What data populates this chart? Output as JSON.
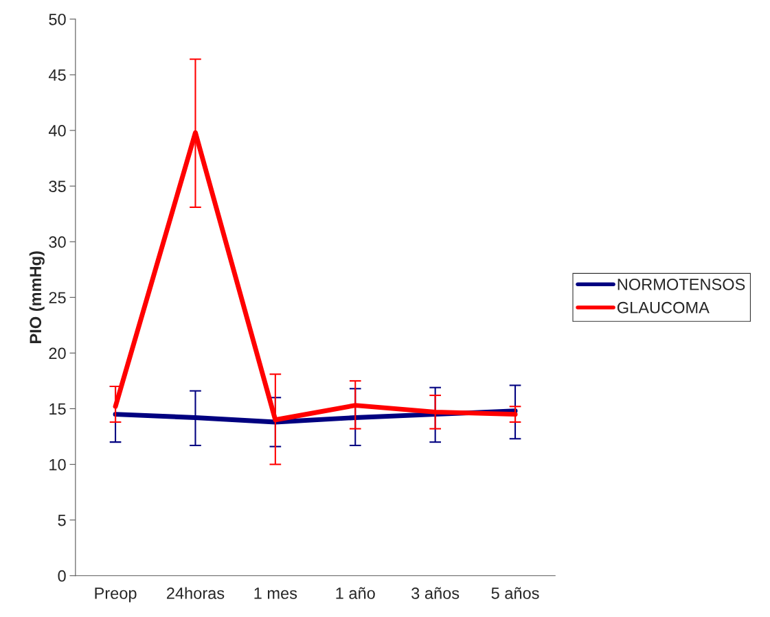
{
  "chart_data": {
    "type": "line",
    "ylabel": "PIO (mmHg)",
    "categories": [
      "Preop",
      "24horas",
      "1 mes",
      "1 año",
      "3 años",
      "5 años"
    ],
    "series": [
      {
        "name": "NORMOTENSOS",
        "color": "#000080",
        "values": [
          14.5,
          14.2,
          13.8,
          14.2,
          14.5,
          14.8
        ],
        "errors": [
          [
            12.0,
            17.0
          ],
          [
            11.7,
            16.6
          ],
          [
            11.6,
            16.0
          ],
          [
            11.7,
            16.8
          ],
          [
            12.0,
            16.9
          ],
          [
            12.3,
            17.1
          ]
        ]
      },
      {
        "name": "GLAUCOMA",
        "color": "#ff0000",
        "values": [
          15.2,
          39.8,
          14.0,
          15.3,
          14.7,
          14.5
        ],
        "errors": [
          [
            13.8,
            17.0
          ],
          [
            33.1,
            46.4
          ],
          [
            10.0,
            18.1
          ],
          [
            13.2,
            17.5
          ],
          [
            13.2,
            16.2
          ],
          [
            13.8,
            15.2
          ]
        ]
      }
    ],
    "ylim": [
      0,
      50
    ],
    "yticks": [
      0,
      5,
      10,
      15,
      20,
      25,
      30,
      35,
      40,
      45,
      50
    ],
    "grid": false,
    "legend": "right",
    "marker": "none",
    "line_style": "solid"
  }
}
